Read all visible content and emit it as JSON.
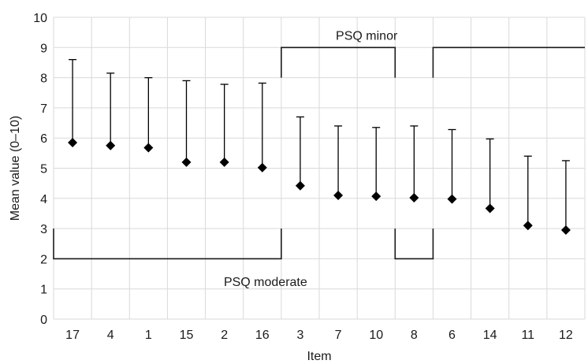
{
  "chart_data": {
    "type": "scatter",
    "xlabel": "Item",
    "ylabel": "Mean value (0–10)",
    "ylim": [
      0,
      10
    ],
    "yticks": [
      0,
      1,
      2,
      3,
      4,
      5,
      6,
      7,
      8,
      9,
      10
    ],
    "grid": true,
    "categories": [
      "17",
      "4",
      "1",
      "15",
      "2",
      "16",
      "3",
      "7",
      "10",
      "8",
      "6",
      "14",
      "11",
      "12"
    ],
    "series": [
      {
        "marker": "diamond",
        "values": [
          5.85,
          5.75,
          5.68,
          5.2,
          5.2,
          5.02,
          4.42,
          4.1,
          4.07,
          4.02,
          3.98,
          3.67,
          3.1,
          2.95
        ],
        "error_upper": [
          8.6,
          8.15,
          8.0,
          7.9,
          7.78,
          7.82,
          6.7,
          6.4,
          6.35,
          6.4,
          6.28,
          5.97,
          5.4,
          5.25
        ]
      }
    ],
    "annotations": [
      {
        "text": "PSQ minor",
        "y": 9,
        "from_category": "3",
        "to_category": "12",
        "gap_categories": [
          "8"
        ]
      },
      {
        "text": "PSQ moderate",
        "y": 2,
        "from_category": "17",
        "to_category": "16",
        "extra_categories": [
          "8"
        ]
      }
    ],
    "colors": {
      "marker": "#000000",
      "grid": "#d9d9d9",
      "bracket": "#1a1a1a"
    }
  }
}
